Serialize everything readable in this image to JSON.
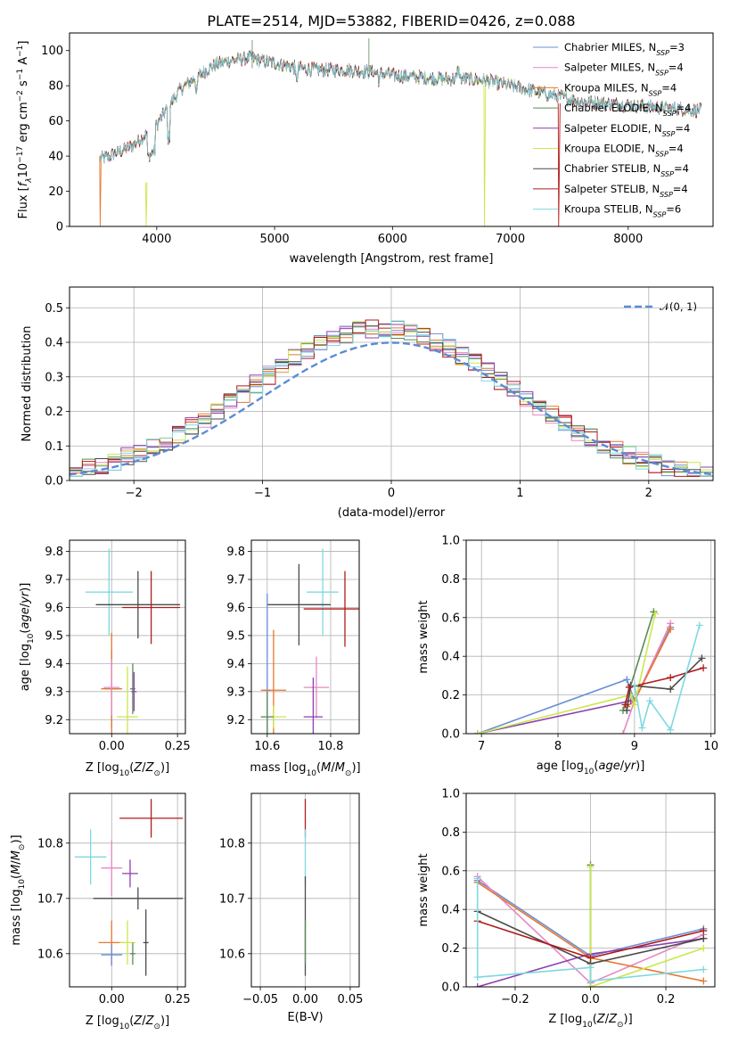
{
  "colors": {
    "chabrier_miles": "#6a8fd4",
    "salpeter_miles": "#e887c4",
    "kroupa_miles": "#e8772e",
    "chabrier_elodie": "#5a8a5a",
    "salpeter_elodie": "#8e3fb0",
    "kroupa_elodie": "#c9e84a",
    "chabrier_stelib": "#4a4a4a",
    "salpeter_stelib": "#b01c1c",
    "kroupa_stelib": "#7fd8e0"
  },
  "chart_data": [
    {
      "id": "spectrum",
      "type": "line",
      "title": "PLATE=2514, MJD=53882, FIBERID=0426, z=0.088",
      "xlabel": "wavelength [Angstrom, rest frame]",
      "ylabel": "Flux [fλ10⁻¹⁷ erg cm⁻² s⁻¹ A⁻¹]",
      "xlim": [
        3260,
        8720
      ],
      "ylim": [
        0,
        110
      ],
      "xticks": [
        4000,
        5000,
        6000,
        7000,
        8000
      ],
      "yticks": [
        0,
        20,
        40,
        60,
        80,
        100
      ],
      "legend_position": "top-right",
      "continuum": {
        "x": [
          3500,
          3600,
          3700,
          3800,
          3900,
          4000,
          4100,
          4200,
          4300,
          4400,
          4500,
          4600,
          4700,
          4800,
          4900,
          5000,
          5200,
          5400,
          5600,
          5800,
          6000,
          6200,
          6400,
          6600,
          6800,
          7000,
          7200,
          7400,
          7600,
          7800,
          8000,
          8200,
          8400,
          8600
        ],
        "y": [
          38,
          40,
          43,
          46,
          52,
          58,
          68,
          78,
          83,
          88,
          92,
          94,
          95,
          96,
          94,
          93,
          90,
          89,
          89,
          88,
          86,
          85,
          84,
          84,
          83,
          80,
          77,
          74,
          71,
          70,
          69,
          68,
          67,
          66
        ]
      },
      "series": [
        {
          "name": "Chabrier MILES, N_SSP=3",
          "color_key": "chabrier_miles"
        },
        {
          "name": "Salpeter MILES, N_SSP=4",
          "color_key": "salpeter_miles"
        },
        {
          "name": "Kroupa MILES, N_SSP=4",
          "color_key": "kroupa_miles"
        },
        {
          "name": "Chabrier ELODIE, N_SSP=4",
          "color_key": "chabrier_elodie"
        },
        {
          "name": "Salpeter ELODIE, N_SSP=4",
          "color_key": "salpeter_elodie"
        },
        {
          "name": "Kroupa ELODIE, N_SSP=4",
          "color_key": "kroupa_elodie"
        },
        {
          "name": "Chabrier STELIB, N_SSP=4",
          "color_key": "chabrier_stelib"
        },
        {
          "name": "Salpeter STELIB, N_SSP=4",
          "color_key": "salpeter_stelib"
        },
        {
          "name": "Kroupa STELIB, N_SSP=6",
          "color_key": "kroupa_stelib"
        }
      ]
    },
    {
      "id": "residuals",
      "type": "histogram",
      "xlabel": "(data-model)/error",
      "ylabel": "Normed distribution",
      "xlim": [
        -2.5,
        2.5
      ],
      "ylim": [
        0,
        0.56
      ],
      "xticks": [
        -2,
        -1,
        0,
        1,
        2
      ],
      "yticks": [
        0.0,
        0.1,
        0.2,
        0.3,
        0.4,
        0.5
      ],
      "grid": true,
      "legend_position": "top-right",
      "normal_curve_label": "𝒩(0, 1)",
      "normal_curve_color": "#5b8bd6"
    },
    {
      "id": "age_vs_Z",
      "type": "errorbar",
      "xlabel": "Z [log10(Z/Z⊙)]",
      "ylabel": "age  [log10(age/yr)]",
      "xlim": [
        -0.16,
        0.28
      ],
      "ylim": [
        9.15,
        9.84
      ],
      "xticks": [
        0.0,
        0.25
      ],
      "yticks": [
        9.2,
        9.3,
        9.4,
        9.5,
        9.6,
        9.7,
        9.8
      ],
      "grid": true,
      "points": [
        {
          "c": "kroupa_stelib",
          "x": -0.01,
          "xe": 0.09,
          "y": 9.655,
          "ye": 0.155
        },
        {
          "c": "chabrier_stelib",
          "x": 0.1,
          "xe": 0.16,
          "y": 9.61,
          "ye": 0.12
        },
        {
          "c": "salpeter_stelib",
          "x": 0.15,
          "xe": 0.11,
          "y": 9.6,
          "ye": 0.13
        },
        {
          "c": "chabrier_miles",
          "x": 0.0,
          "xe": 0.025,
          "y": 9.31,
          "ye": 0.14
        },
        {
          "c": "kroupa_miles",
          "x": 0.0,
          "xe": 0.04,
          "y": 9.31,
          "ye": 0.2
        },
        {
          "c": "salpeter_miles",
          "x": 0.0,
          "xe": 0.03,
          "y": 9.315,
          "ye": 0.1
        },
        {
          "c": "kroupa_elodie",
          "x": 0.06,
          "xe": 0.04,
          "y": 9.21,
          "ye": 0.18
        },
        {
          "c": "chabrier_elodie",
          "x": 0.08,
          "xe": 0.01,
          "y": 9.31,
          "ye": 0.09
        },
        {
          "c": "salpeter_elodie",
          "x": 0.085,
          "xe": 0.01,
          "y": 9.3,
          "ye": 0.07
        }
      ]
    },
    {
      "id": "age_vs_mass",
      "type": "errorbar",
      "xlabel": "mass [log10(M/M⊙)]",
      "ylabel": "",
      "xlim": [
        10.55,
        10.89
      ],
      "ylim": [
        9.15,
        9.84
      ],
      "xticks": [
        10.6,
        10.8
      ],
      "yticks": [
        9.2,
        9.3,
        9.4,
        9.5,
        9.6,
        9.7,
        9.8
      ],
      "grid": true,
      "points": [
        {
          "c": "kroupa_stelib",
          "x": 10.775,
          "xe": 0.05,
          "y": 9.655,
          "ye": 0.155
        },
        {
          "c": "chabrier_stelib",
          "x": 10.7,
          "xe": 0.1,
          "y": 9.61,
          "ye": 0.145
        },
        {
          "c": "salpeter_stelib",
          "x": 10.845,
          "xe": 0.13,
          "y": 9.595,
          "ye": 0.135
        },
        {
          "c": "chabrier_miles",
          "x": 10.6,
          "xe": 0.012,
          "y": 9.305,
          "ye": 0.345
        },
        {
          "c": "kroupa_miles",
          "x": 10.62,
          "xe": 0.04,
          "y": 9.305,
          "ye": 0.215
        },
        {
          "c": "salpeter_miles",
          "x": 10.755,
          "xe": 0.04,
          "y": 9.315,
          "ye": 0.11
        },
        {
          "c": "kroupa_elodie",
          "x": 10.62,
          "xe": 0.04,
          "y": 9.21,
          "ye": 0.04
        },
        {
          "c": "chabrier_elodie",
          "x": 10.6,
          "xe": 0.02,
          "y": 9.21,
          "ye": 0.09
        },
        {
          "c": "salpeter_elodie",
          "x": 10.745,
          "xe": 0.03,
          "y": 9.21,
          "ye": 0.14
        }
      ]
    },
    {
      "id": "weight_vs_age",
      "type": "line",
      "xlabel": "age  [log10(age/yr)]",
      "ylabel": "mass weight",
      "xlim": [
        6.8,
        10.05
      ],
      "ylim": [
        0,
        1
      ],
      "xticks": [
        7,
        8,
        9,
        10
      ],
      "yticks": [
        0.0,
        0.2,
        0.4,
        0.6,
        0.8,
        1.0
      ],
      "grid": true,
      "lines": [
        {
          "c": "chabrier_miles",
          "x": [
            6.95,
            8.9,
            9.0,
            9.47
          ],
          "y": [
            0.0,
            0.28,
            0.17,
            0.55
          ]
        },
        {
          "c": "salpeter_miles",
          "x": [
            8.85,
            9.0,
            9.47
          ],
          "y": [
            0.0,
            0.17,
            0.57
          ]
        },
        {
          "c": "kroupa_miles",
          "x": [
            8.9,
            9.0,
            9.47
          ],
          "y": [
            0.14,
            0.17,
            0.54
          ]
        },
        {
          "c": "chabrier_elodie",
          "x": [
            8.85,
            9.25
          ],
          "y": [
            0.12,
            0.63
          ]
        },
        {
          "c": "salpeter_elodie",
          "x": [
            6.95,
            8.95
          ],
          "y": [
            0.0,
            0.17
          ]
        },
        {
          "c": "kroupa_elodie",
          "x": [
            6.95,
            8.95,
            9.0,
            9.27
          ],
          "y": [
            0.0,
            0.2,
            0.15,
            0.62
          ]
        },
        {
          "c": "chabrier_stelib",
          "x": [
            8.9,
            8.95,
            9.47,
            9.88
          ],
          "y": [
            0.12,
            0.25,
            0.23,
            0.39
          ]
        },
        {
          "c": "salpeter_stelib",
          "x": [
            8.88,
            8.93,
            9.47,
            9.9
          ],
          "y": [
            0.15,
            0.24,
            0.29,
            0.34
          ]
        },
        {
          "c": "kroupa_stelib",
          "x": [
            9.0,
            9.1,
            9.2,
            9.47,
            9.85
          ],
          "y": [
            0.25,
            0.03,
            0.17,
            0.02,
            0.56
          ]
        }
      ]
    },
    {
      "id": "mass_vs_Z",
      "type": "errorbar",
      "xlabel": "Z [log10(Z/Z⊙)]",
      "ylabel": "mass [log10(M/M⊙)]",
      "xlim": [
        -0.16,
        0.28
      ],
      "ylim": [
        10.54,
        10.89
      ],
      "xticks": [
        0.0,
        0.25
      ],
      "yticks": [
        10.6,
        10.7,
        10.8
      ],
      "grid": true,
      "points": [
        {
          "c": "kroupa_stelib",
          "x": -0.08,
          "xe": 0.06,
          "y": 10.775,
          "ye": 0.05
        },
        {
          "c": "salpeter_stelib",
          "x": 0.15,
          "xe": 0.12,
          "y": 10.845,
          "ye": 0.035
        },
        {
          "c": "chabrier_stelib",
          "x": 0.1,
          "xe": 0.17,
          "y": 10.7,
          "ye": 0.02
        },
        {
          "c": "salpeter_miles",
          "x": 0.0,
          "xe": 0.04,
          "y": 10.755,
          "ye": 0.05
        },
        {
          "c": "salpeter_elodie",
          "x": 0.07,
          "xe": 0.03,
          "y": 10.745,
          "ye": 0.025
        },
        {
          "c": "kroupa_miles",
          "x": 0.0,
          "xe": 0.05,
          "y": 10.62,
          "ye": 0.04
        },
        {
          "c": "kroupa_elodie",
          "x": 0.06,
          "xe": 0.03,
          "y": 10.62,
          "ye": 0.04
        },
        {
          "c": "chabrier_miles",
          "x": 0.0,
          "xe": 0.04,
          "y": 10.598,
          "ye": 0.02
        },
        {
          "c": "chabrier_elodie",
          "x": 0.08,
          "xe": 0.01,
          "y": 10.6,
          "ye": 0.02
        },
        {
          "c": "chabrier_stelib",
          "x": 0.13,
          "xe": 0.01,
          "y": 10.62,
          "ye": 0.06
        }
      ]
    },
    {
      "id": "mass_vs_ebv",
      "type": "errorbar",
      "xlabel": "E(B-V)",
      "ylabel": "",
      "xlim": [
        -0.06,
        0.06
      ],
      "ylim": [
        10.54,
        10.89
      ],
      "xticks": [
        -0.05,
        0.0,
        0.05
      ],
      "yticks": [
        10.6,
        10.7,
        10.8
      ],
      "grid": true,
      "points": [
        {
          "c": "salpeter_stelib",
          "x": 0.0,
          "xe": 0.0,
          "y": 10.845,
          "ye": 0.035
        },
        {
          "c": "kroupa_stelib",
          "x": 0.0,
          "xe": 0.0,
          "y": 10.775,
          "ye": 0.05
        },
        {
          "c": "chabrier_stelib",
          "x": 0.0,
          "xe": 0.0,
          "y": 10.65,
          "ye": 0.09
        },
        {
          "c": "chabrier_elodie",
          "x": 0.0,
          "xe": 0.0,
          "y": 10.62,
          "ye": 0.04
        }
      ]
    },
    {
      "id": "weight_vs_Z",
      "type": "line",
      "xlabel": "Z [log10(Z/Z⊙)]",
      "ylabel": "mass weight",
      "xlim": [
        -0.33,
        0.33
      ],
      "ylim": [
        0,
        1
      ],
      "xticks": [
        -0.2,
        0.0,
        0.2
      ],
      "yticks": [
        0.0,
        0.2,
        0.4,
        0.6,
        0.8,
        1.0
      ],
      "grid": true,
      "lines": [
        {
          "c": "chabrier_miles",
          "x": [
            -0.3,
            0.0,
            0.3
          ],
          "y": [
            0.55,
            0.16,
            0.3
          ]
        },
        {
          "c": "salpeter_miles",
          "x": [
            -0.3,
            0.0,
            0.3
          ],
          "y": [
            0.57,
            0.02,
            0.27
          ]
        },
        {
          "c": "kroupa_miles",
          "x": [
            -0.3,
            0.0,
            0.3
          ],
          "y": [
            0.54,
            0.15,
            0.03
          ]
        },
        {
          "c": "chabrier_elodie",
          "x": [
            0.0,
            0.0
          ],
          "y": [
            0.63,
            0.0
          ]
        },
        {
          "c": "salpeter_elodie",
          "x": [
            -0.3,
            0.0,
            0.3
          ],
          "y": [
            0.0,
            0.17,
            0.25
          ]
        },
        {
          "c": "kroupa_elodie",
          "x": [
            0.0,
            0.0,
            0.3
          ],
          "y": [
            0.62,
            0.0,
            0.2
          ]
        },
        {
          "c": "chabrier_stelib",
          "x": [
            -0.3,
            0.0,
            0.3
          ],
          "y": [
            0.39,
            0.12,
            0.25
          ]
        },
        {
          "c": "salpeter_stelib",
          "x": [
            -0.3,
            0.0,
            0.3
          ],
          "y": [
            0.34,
            0.15,
            0.29
          ]
        },
        {
          "c": "kroupa_stelib",
          "x": [
            -0.3,
            -0.3,
            0.0,
            0.0,
            0.3
          ],
          "y": [
            0.56,
            0.05,
            0.1,
            0.03,
            0.09
          ]
        }
      ]
    }
  ]
}
